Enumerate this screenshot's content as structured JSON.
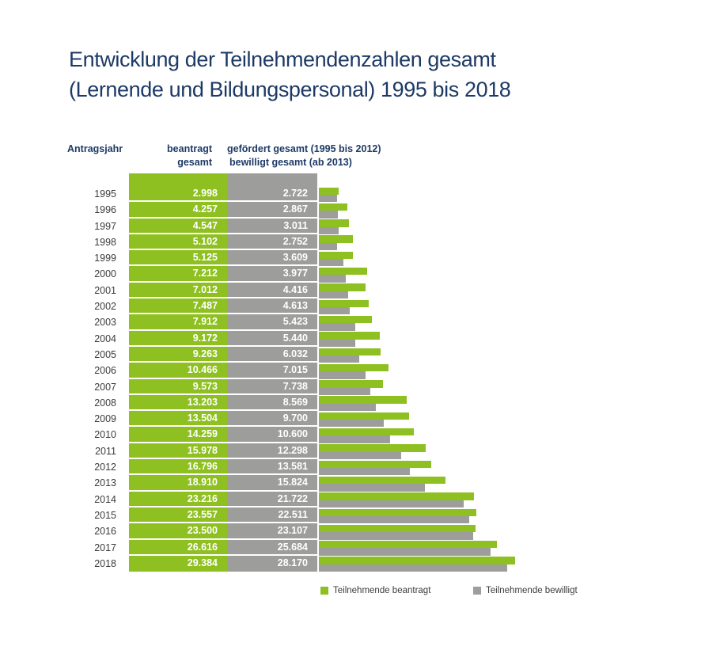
{
  "title": {
    "line1": "Entwicklung der Teilnehmendenzahlen gesamt",
    "line2": "(Lernende und Bildungspersonal) 1995 bis 2018"
  },
  "colors": {
    "green": "#8fc021",
    "gray": "#9d9d9c",
    "title_blue": "#1d3a66",
    "text_dark": "#3c3c3b"
  },
  "table_header": {
    "year_col": "Antragsjahr",
    "beantragt_line1": "beantragt",
    "beantragt_line2": "gesamt",
    "gefoerdert_line1": "gefördert gesamt (1995 bis 2012)",
    "gefoerdert_line2": "bewilligt gesamt (ab 2013)"
  },
  "legend": {
    "items": [
      {
        "label": "Teilnehmende beantragt",
        "color": "#8fc021"
      },
      {
        "label": "Teilnehmende bewilligt",
        "color": "#9d9d9c"
      }
    ]
  },
  "chart_data": {
    "type": "bar",
    "orientation": "horizontal",
    "title": "Entwicklung der Teilnehmendenzahlen gesamt (Lernende und Bildungspersonal) 1995 bis 2018",
    "categories": [
      "1995",
      "1996",
      "1997",
      "1998",
      "1999",
      "2000",
      "2001",
      "2002",
      "2003",
      "2004",
      "2005",
      "2006",
      "2007",
      "2008",
      "2009",
      "2010",
      "2011",
      "2012",
      "2013",
      "2014",
      "2015",
      "2016",
      "2017",
      "2018"
    ],
    "max_value": 29384,
    "grid": false,
    "legend_position": "bottom",
    "series": [
      {
        "name": "Teilnehmende beantragt",
        "color": "#8fc021",
        "values": [
          2998,
          4257,
          4547,
          5102,
          5125,
          7212,
          7012,
          7487,
          7912,
          9172,
          9263,
          10466,
          9573,
          13203,
          13504,
          14259,
          15978,
          16796,
          18910,
          23216,
          23557,
          23500,
          26616,
          29384
        ],
        "labels": [
          "2.998",
          "4.257",
          "4.547",
          "5.102",
          "5.125",
          "7.212",
          "7.012",
          "7.487",
          "7.912",
          "9.172",
          "9.263",
          "10.466",
          "9.573",
          "13.203",
          "13.504",
          "14.259",
          "15.978",
          "16.796",
          "18.910",
          "23.216",
          "23.557",
          "23.500",
          "26.616",
          "29.384"
        ]
      },
      {
        "name": "Teilnehmende bewilligt",
        "color": "#9d9d9c",
        "values": [
          2722,
          2867,
          3011,
          2752,
          3609,
          3977,
          4416,
          4613,
          5423,
          5440,
          6032,
          7015,
          7738,
          8569,
          9700,
          10600,
          12298,
          13581,
          15824,
          21722,
          22511,
          23107,
          25684,
          28170
        ],
        "labels": [
          "2.722",
          "2.867",
          "3.011",
          "2.752",
          "3.609",
          "3.977",
          "4.416",
          "4.613",
          "5.423",
          "5.440",
          "6.032",
          "7.015",
          "7.738",
          "8.569",
          "9.700",
          "10.600",
          "12.298",
          "13.581",
          "15.824",
          "21.722",
          "22.511",
          "23.107",
          "25.684",
          "28.170"
        ]
      }
    ]
  }
}
